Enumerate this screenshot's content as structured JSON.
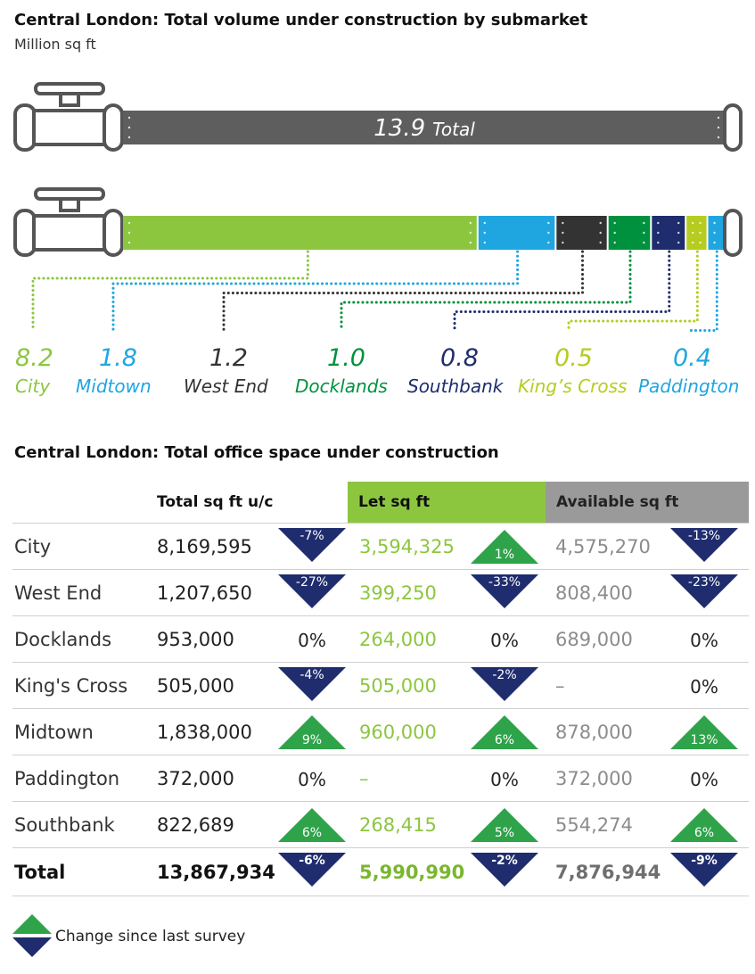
{
  "colors": {
    "city": "#8cc63f",
    "midtown": "#1fa6e0",
    "west_end": "#333333",
    "docklands": "#00913f",
    "southbank": "#1f2d6e",
    "kings_cross": "#b6cc1f",
    "paddington": "#1fa6e0",
    "total_bar": "#5e5e5e",
    "up": "#2fa34a",
    "down": "#1f2d6e",
    "let_header": "#8cc63f",
    "avail_header": "#9a9a9a"
  },
  "chart1": {
    "title": "Central London: Total volume under construction by submarket",
    "subtitle": "Million sq ft",
    "total_value": "13.9",
    "total_word": "Total"
  },
  "chart_data": [
    {
      "type": "bar",
      "orientation": "horizontal-stacked",
      "title": "Central London: Total volume under construction by submarket",
      "unit": "Million sq ft",
      "total": 13.9,
      "categories": [
        "City",
        "Midtown",
        "West End",
        "Docklands",
        "Southbank",
        "King's Cross",
        "Paddington"
      ],
      "values": [
        8.2,
        1.8,
        1.2,
        1.0,
        0.8,
        0.5,
        0.4
      ]
    },
    {
      "type": "table",
      "title": "Central London: Total office space under construction",
      "columns": [
        "Total sq ft u/c",
        "Let sq ft",
        "Available sq ft"
      ]
    }
  ],
  "segments": [
    {
      "value": "8.2",
      "name": "City",
      "key": "city"
    },
    {
      "value": "1.8",
      "name": "Midtown",
      "key": "midtown"
    },
    {
      "value": "1.2",
      "name": "West End",
      "key": "west_end"
    },
    {
      "value": "1.0",
      "name": "Docklands",
      "key": "docklands"
    },
    {
      "value": "0.8",
      "name": "Southbank",
      "key": "southbank"
    },
    {
      "value": "0.5",
      "name": "King’s Cross",
      "key": "kings_cross"
    },
    {
      "value": "0.4",
      "name": "Paddington",
      "key": "paddington"
    }
  ],
  "table": {
    "title": "Central London: Total office space under construction",
    "headers": {
      "total": "Total sq ft u/c",
      "let": "Let sq ft",
      "available": "Available sq ft"
    },
    "rows": [
      {
        "name": "City",
        "total": "8,169,595",
        "total_chg": "-7%",
        "total_dir": "down",
        "let": "3,594,325",
        "let_chg": "1%",
        "let_dir": "up",
        "avail": "4,575,270",
        "avail_chg": "-13%",
        "avail_dir": "down"
      },
      {
        "name": "West End",
        "total": "1,207,650",
        "total_chg": "-27%",
        "total_dir": "down",
        "let": "399,250",
        "let_chg": "-33%",
        "let_dir": "down",
        "avail": "808,400",
        "avail_chg": "-23%",
        "avail_dir": "down"
      },
      {
        "name": "Docklands",
        "total": "953,000",
        "total_chg": "0%",
        "total_dir": "none",
        "let": "264,000",
        "let_chg": "0%",
        "let_dir": "none",
        "avail": "689,000",
        "avail_chg": "0%",
        "avail_dir": "none"
      },
      {
        "name": "King's Cross",
        "total": "505,000",
        "total_chg": "-4%",
        "total_dir": "down",
        "let": "505,000",
        "let_chg": "-2%",
        "let_dir": "down",
        "avail": "–",
        "avail_chg": "0%",
        "avail_dir": "none"
      },
      {
        "name": "Midtown",
        "total": "1,838,000",
        "total_chg": "9%",
        "total_dir": "up",
        "let": "960,000",
        "let_chg": "6%",
        "let_dir": "up",
        "avail": "878,000",
        "avail_chg": "13%",
        "avail_dir": "up"
      },
      {
        "name": "Paddington",
        "total": "372,000",
        "total_chg": "0%",
        "total_dir": "none",
        "let": "–",
        "let_chg": "0%",
        "let_dir": "none",
        "avail": "372,000",
        "avail_chg": "0%",
        "avail_dir": "none"
      },
      {
        "name": "Southbank",
        "total": "822,689",
        "total_chg": "6%",
        "total_dir": "up",
        "let": "268,415",
        "let_chg": "5%",
        "let_dir": "up",
        "avail": "554,274",
        "avail_chg": "6%",
        "avail_dir": "up"
      }
    ],
    "total_row": {
      "name": "Total",
      "total": "13,867,934",
      "total_chg": "-6%",
      "total_dir": "down",
      "let": "5,990,990",
      "let_chg": "-2%",
      "let_dir": "down",
      "avail": "7,876,944",
      "avail_chg": "-9%",
      "avail_dir": "down"
    }
  },
  "legend": {
    "label": "Change since last survey"
  }
}
